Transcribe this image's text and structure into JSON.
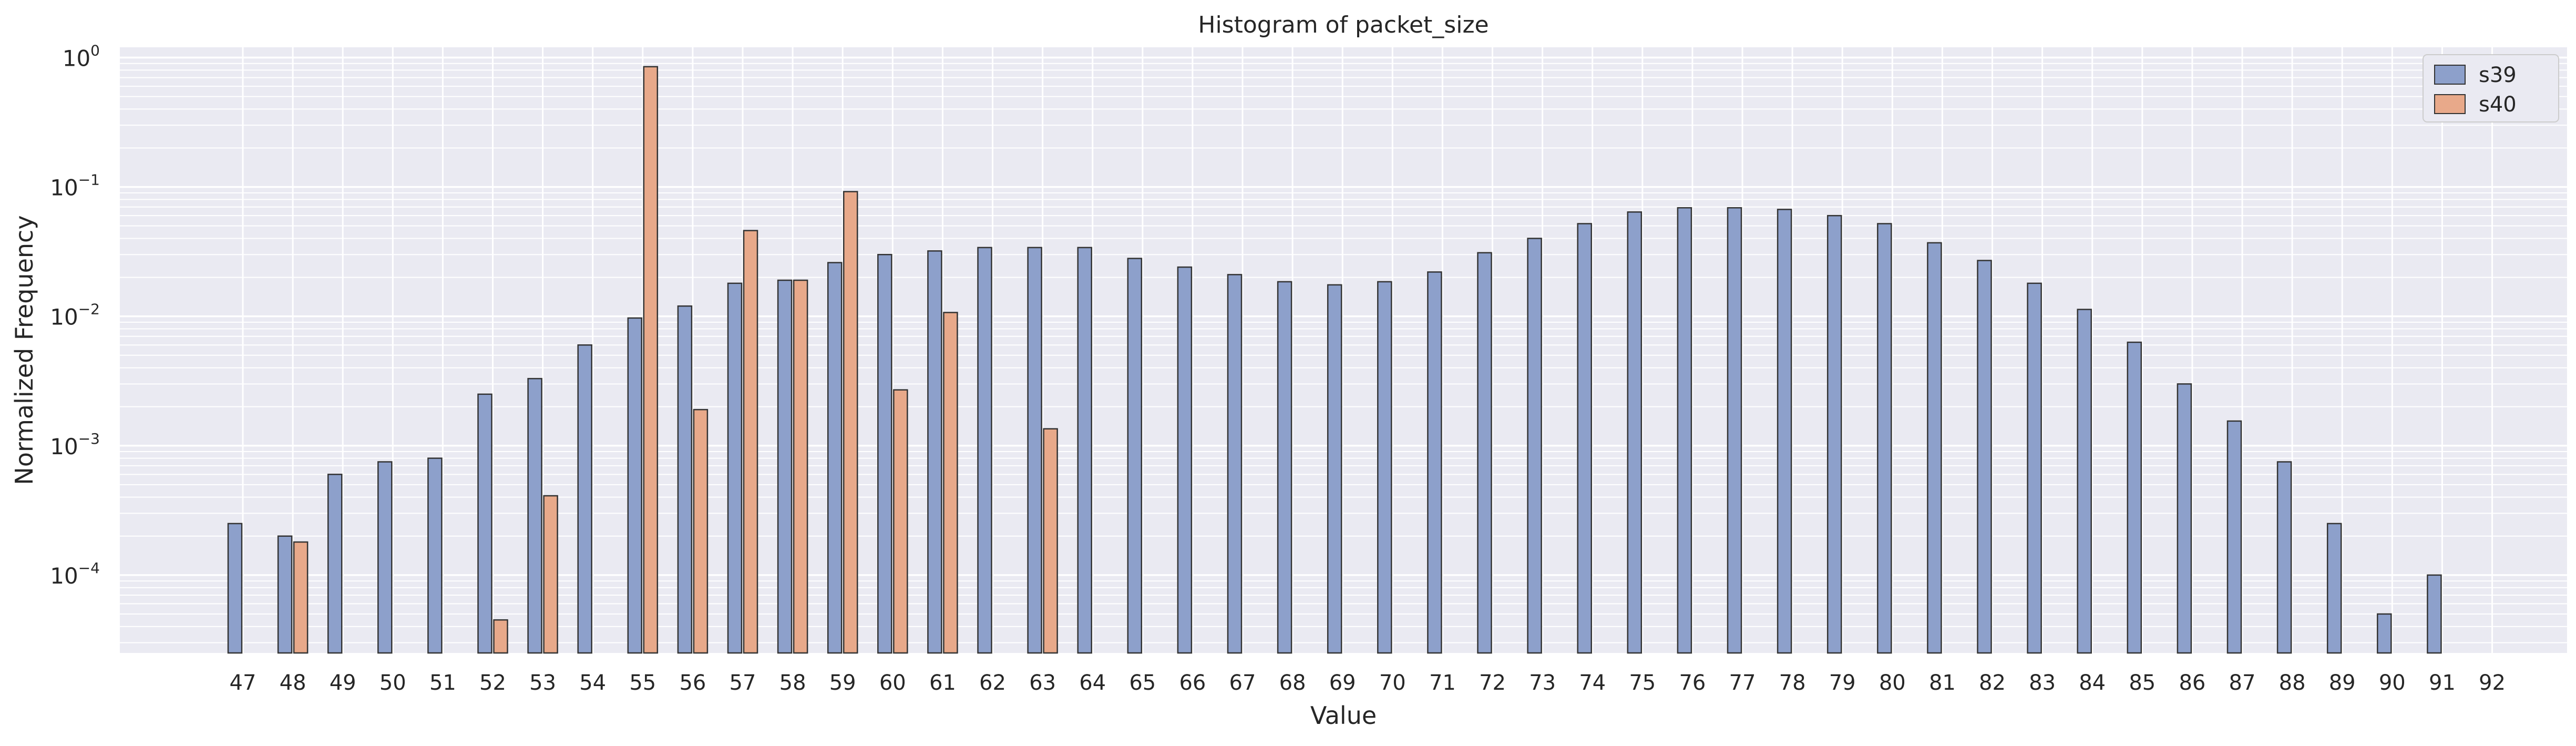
{
  "chart_data": {
    "type": "bar",
    "title": "Histogram of packet_size",
    "xlabel": "Value",
    "ylabel": "Normalized Frequency",
    "yscale": "log",
    "ylim": [
      2.5e-05,
      1.2
    ],
    "grid": true,
    "legend_placement": "top-right",
    "categories": [
      "47",
      "48",
      "49",
      "50",
      "51",
      "52",
      "53",
      "54",
      "55",
      "56",
      "57",
      "58",
      "59",
      "60",
      "61",
      "62",
      "63",
      "64",
      "65",
      "66",
      "67",
      "68",
      "69",
      "70",
      "71",
      "72",
      "73",
      "74",
      "75",
      "76",
      "77",
      "78",
      "79",
      "80",
      "81",
      "82",
      "83",
      "84",
      "85",
      "86",
      "87",
      "88",
      "89",
      "90",
      "91",
      "92"
    ],
    "yticks": [
      {
        "value": 0.0001,
        "base": "10",
        "exp": "−4"
      },
      {
        "value": 0.001,
        "base": "10",
        "exp": "−3"
      },
      {
        "value": 0.01,
        "base": "10",
        "exp": "−2"
      },
      {
        "value": 0.1,
        "base": "10",
        "exp": "−1"
      },
      {
        "value": 1,
        "base": "10",
        "exp": "0"
      }
    ],
    "series": [
      {
        "name": "s39",
        "color": "#8da0cb",
        "values": [
          0.00025,
          0.0002,
          0.0006,
          0.00075,
          0.0008,
          0.0025,
          0.0033,
          0.006,
          0.0097,
          0.012,
          0.018,
          0.019,
          0.026,
          0.03,
          0.032,
          0.034,
          0.034,
          0.034,
          0.028,
          0.024,
          0.021,
          0.0185,
          0.0175,
          0.0185,
          0.022,
          0.031,
          0.04,
          0.052,
          0.064,
          0.069,
          0.069,
          0.067,
          0.06,
          0.052,
          0.037,
          0.027,
          0.018,
          0.0113,
          0.0063,
          0.003,
          0.00155,
          0.00075,
          0.00025,
          5e-05,
          0.0001,
          null
        ]
      },
      {
        "name": "s40",
        "color": "#e8a98a",
        "values": [
          null,
          0.00018,
          null,
          null,
          null,
          4.5e-05,
          0.00041,
          null,
          0.85,
          0.0019,
          0.046,
          0.019,
          0.092,
          0.0027,
          0.0107,
          null,
          0.00135,
          null,
          null,
          null,
          null,
          null,
          null,
          null,
          null,
          null,
          null,
          null,
          null,
          null,
          null,
          null,
          null,
          null,
          null,
          null,
          null,
          null,
          null,
          null,
          null,
          null,
          null,
          null,
          null,
          null
        ]
      }
    ]
  }
}
